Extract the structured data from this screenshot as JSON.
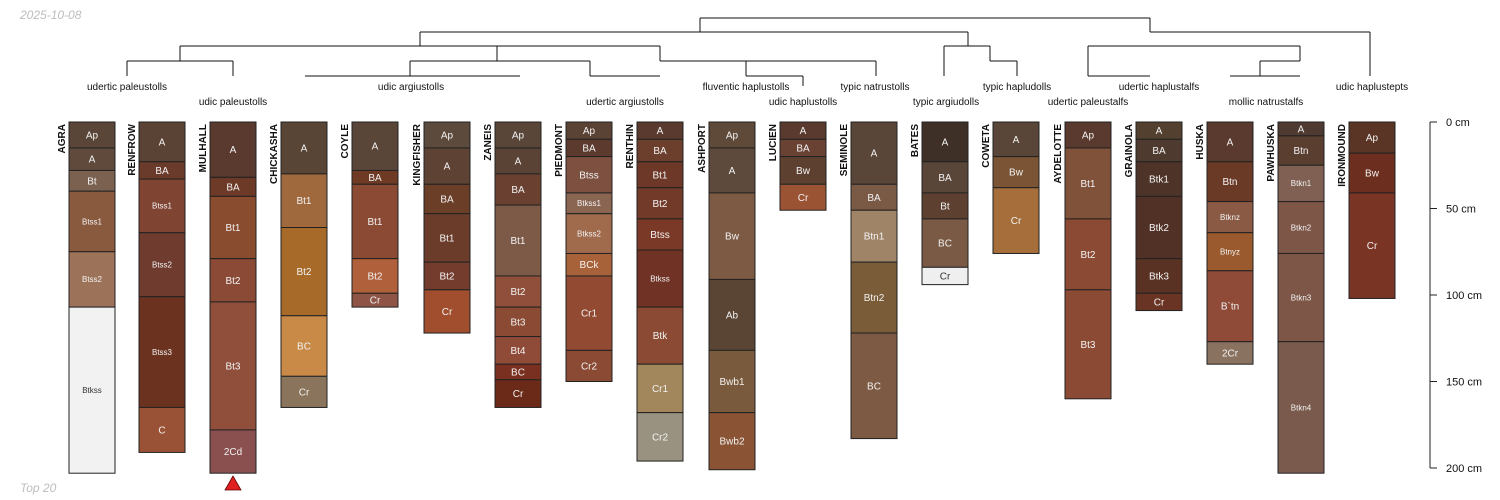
{
  "header": {
    "date": "2025-10-08"
  },
  "footer": {
    "label": "Top 20"
  },
  "chart_data": {
    "type": "soil-profile-sketch",
    "depth_unit": "cm",
    "depth_range": [
      0,
      200
    ],
    "depth_ticks": [
      0,
      50,
      100,
      150,
      200
    ],
    "depth_tick_labels": [
      "0 cm",
      "50 cm",
      "100 cm",
      "150 cm",
      "200 cm"
    ],
    "group_labels": [
      "udertic paleustolls",
      "udic paleustolls",
      "udic argiustolls",
      "udertic argiustolls",
      "fluventic haplustolls",
      "udic haplustolls",
      "typic natrustolls",
      "typic argiudolls",
      "typic hapludolls",
      "udertic paleustalfs",
      "udertic haplustalfs",
      "mollic natrustalfs",
      "udic haplustepts"
    ],
    "profiles": [
      {
        "name": "AGRA",
        "horizons": [
          {
            "name": "Ap",
            "top": 0,
            "bottom": 15,
            "color": "#5a4638"
          },
          {
            "name": "A",
            "top": 15,
            "bottom": 28,
            "color": "#5f4a3c"
          },
          {
            "name": "Bt",
            "top": 28,
            "bottom": 40,
            "color": "#7a6150"
          },
          {
            "name": "Btss1",
            "top": 40,
            "bottom": 75,
            "color": "#8a5a3e"
          },
          {
            "name": "Btss2",
            "top": 75,
            "bottom": 107,
            "color": "#9c7358"
          },
          {
            "name": "Btkss",
            "top": 107,
            "bottom": 203,
            "color": "#f2f2f2"
          }
        ]
      },
      {
        "name": "RENFROW",
        "horizons": [
          {
            "name": "A",
            "top": 0,
            "bottom": 23,
            "color": "#5a4235"
          },
          {
            "name": "BA",
            "top": 23,
            "bottom": 33,
            "color": "#6a3a2a"
          },
          {
            "name": "Btss1",
            "top": 33,
            "bottom": 64,
            "color": "#804432"
          },
          {
            "name": "Btss2",
            "top": 64,
            "bottom": 101,
            "color": "#6e3b2e"
          },
          {
            "name": "Btss3",
            "top": 101,
            "bottom": 165,
            "color": "#6b3220"
          },
          {
            "name": "C",
            "top": 165,
            "bottom": 191,
            "color": "#9a5236"
          }
        ]
      },
      {
        "name": "MULHALL",
        "horizons": [
          {
            "name": "A",
            "top": 0,
            "bottom": 32,
            "color": "#5a3a2e"
          },
          {
            "name": "BA",
            "top": 32,
            "bottom": 43,
            "color": "#6c3a26"
          },
          {
            "name": "Bt1",
            "top": 43,
            "bottom": 79,
            "color": "#8a4c2e"
          },
          {
            "name": "Bt2",
            "top": 79,
            "bottom": 104,
            "color": "#8a4a36"
          },
          {
            "name": "Bt3",
            "top": 104,
            "bottom": 178,
            "color": "#8f4f3b"
          },
          {
            "name": "2Cd",
            "top": 178,
            "bottom": 203,
            "color": "#8a5050"
          }
        ]
      },
      {
        "name": "CHICKASHA",
        "horizons": [
          {
            "name": "A",
            "top": 0,
            "bottom": 30,
            "color": "#594536"
          },
          {
            "name": "Bt1",
            "top": 30,
            "bottom": 61,
            "color": "#a0693d"
          },
          {
            "name": "Bt2",
            "top": 61,
            "bottom": 112,
            "color": "#a86a28"
          },
          {
            "name": "BC",
            "top": 112,
            "bottom": 147,
            "color": "#c98a48"
          },
          {
            "name": "Cr",
            "top": 147,
            "bottom": 165,
            "color": "#8a745c"
          }
        ]
      },
      {
        "name": "COYLE",
        "horizons": [
          {
            "name": "A",
            "top": 0,
            "bottom": 28,
            "color": "#5a4638"
          },
          {
            "name": "BA",
            "top": 28,
            "bottom": 36,
            "color": "#6e3a24"
          },
          {
            "name": "Bt1",
            "top": 36,
            "bottom": 79,
            "color": "#8a4a34"
          },
          {
            "name": "Bt2",
            "top": 79,
            "bottom": 99,
            "color": "#b0603a"
          },
          {
            "name": "Cr",
            "top": 99,
            "bottom": 107,
            "color": "#8e5546"
          }
        ]
      },
      {
        "name": "KINGFISHER",
        "horizons": [
          {
            "name": "Ap",
            "top": 0,
            "bottom": 15,
            "color": "#5c4a3c"
          },
          {
            "name": "A",
            "top": 15,
            "bottom": 36,
            "color": "#5e4335"
          },
          {
            "name": "BA",
            "top": 36,
            "bottom": 53,
            "color": "#6b3e28"
          },
          {
            "name": "Bt1",
            "top": 53,
            "bottom": 81,
            "color": "#6b3c2a"
          },
          {
            "name": "Bt2",
            "top": 81,
            "bottom": 97,
            "color": "#733c2c"
          },
          {
            "name": "Cr",
            "top": 97,
            "bottom": 122,
            "color": "#a04e2e"
          }
        ]
      },
      {
        "name": "ZANEIS",
        "horizons": [
          {
            "name": "Ap",
            "top": 0,
            "bottom": 15,
            "color": "#5a4638"
          },
          {
            "name": "A",
            "top": 15,
            "bottom": 30,
            "color": "#5a4235"
          },
          {
            "name": "BA",
            "top": 30,
            "bottom": 48,
            "color": "#6a4030"
          },
          {
            "name": "Bt1",
            "top": 48,
            "bottom": 89,
            "color": "#7d5a48"
          },
          {
            "name": "Bt2",
            "top": 89,
            "bottom": 107,
            "color": "#8f4f3b"
          },
          {
            "name": "Bt3",
            "top": 107,
            "bottom": 124,
            "color": "#8a4a34"
          },
          {
            "name": "Bt4",
            "top": 124,
            "bottom": 140,
            "color": "#8f4a38"
          },
          {
            "name": "BC",
            "top": 140,
            "bottom": 149,
            "color": "#7a3020"
          },
          {
            "name": "Cr",
            "top": 149,
            "bottom": 165,
            "color": "#6b2a18"
          }
        ]
      },
      {
        "name": "PIEDMONT",
        "horizons": [
          {
            "name": "Ap",
            "top": 0,
            "bottom": 10,
            "color": "#5a4235"
          },
          {
            "name": "BA",
            "top": 10,
            "bottom": 20,
            "color": "#5c3a2e"
          },
          {
            "name": "Btss",
            "top": 20,
            "bottom": 41,
            "color": "#7d5040"
          },
          {
            "name": "Btkss1",
            "top": 41,
            "bottom": 53,
            "color": "#8a6552"
          },
          {
            "name": "Btkss2",
            "top": 53,
            "bottom": 76,
            "color": "#a06a4c"
          },
          {
            "name": "BCk",
            "top": 76,
            "bottom": 89,
            "color": "#a8623a"
          },
          {
            "name": "Cr1",
            "top": 89,
            "bottom": 132,
            "color": "#934a33"
          },
          {
            "name": "Cr2",
            "top": 132,
            "bottom": 150,
            "color": "#8a4a34"
          }
        ]
      },
      {
        "name": "RENTHIN",
        "horizons": [
          {
            "name": "A",
            "top": 0,
            "bottom": 10,
            "color": "#5a3a2e"
          },
          {
            "name": "BA",
            "top": 10,
            "bottom": 23,
            "color": "#6c3e2c"
          },
          {
            "name": "Bt1",
            "top": 23,
            "bottom": 38,
            "color": "#6d3828"
          },
          {
            "name": "Bt2",
            "top": 38,
            "bottom": 56,
            "color": "#723a28"
          },
          {
            "name": "Btss",
            "top": 56,
            "bottom": 74,
            "color": "#7a3826"
          },
          {
            "name": "Btkss",
            "top": 74,
            "bottom": 107,
            "color": "#703224"
          },
          {
            "name": "Btk",
            "top": 107,
            "bottom": 140,
            "color": "#8a4a34"
          },
          {
            "name": "Cr1",
            "top": 140,
            "bottom": 168,
            "color": "#a3875c"
          },
          {
            "name": "Cr2",
            "top": 168,
            "bottom": 196,
            "color": "#9a9280"
          }
        ]
      },
      {
        "name": "ASHPORT",
        "horizons": [
          {
            "name": "Ap",
            "top": 0,
            "bottom": 15,
            "color": "#5f4a3a"
          },
          {
            "name": "A",
            "top": 15,
            "bottom": 41,
            "color": "#5d4a3c"
          },
          {
            "name": "Bw",
            "top": 41,
            "bottom": 91,
            "color": "#7d5a44"
          },
          {
            "name": "Ab",
            "top": 91,
            "bottom": 132,
            "color": "#5a4434"
          },
          {
            "name": "Bwb1",
            "top": 132,
            "bottom": 168,
            "color": "#7a5a3c"
          },
          {
            "name": "Bwb2",
            "top": 168,
            "bottom": 201,
            "color": "#8a5434"
          }
        ]
      },
      {
        "name": "LUCIEN",
        "horizons": [
          {
            "name": "A",
            "top": 0,
            "bottom": 10,
            "color": "#5a3a2e"
          },
          {
            "name": "BA",
            "top": 10,
            "bottom": 20,
            "color": "#6a4234"
          },
          {
            "name": "Bw",
            "top": 20,
            "bottom": 36,
            "color": "#5e4030"
          },
          {
            "name": "Cr",
            "top": 36,
            "bottom": 51,
            "color": "#9a5434"
          }
        ]
      },
      {
        "name": "SEMINOLE",
        "horizons": [
          {
            "name": "A",
            "top": 0,
            "bottom": 36,
            "color": "#5a4638"
          },
          {
            "name": "BA",
            "top": 36,
            "bottom": 51,
            "color": "#7a5a44"
          },
          {
            "name": "Btn1",
            "top": 51,
            "bottom": 81,
            "color": "#a08468"
          },
          {
            "name": "Btn2",
            "top": 81,
            "bottom": 122,
            "color": "#7a5c38"
          },
          {
            "name": "BC",
            "top": 122,
            "bottom": 183,
            "color": "#7d5a44"
          }
        ]
      },
      {
        "name": "BATES",
        "horizons": [
          {
            "name": "A",
            "top": 0,
            "bottom": 23,
            "color": "#3e3026"
          },
          {
            "name": "BA",
            "top": 23,
            "bottom": 41,
            "color": "#5a4638"
          },
          {
            "name": "Bt",
            "top": 41,
            "bottom": 56,
            "color": "#5e4030"
          },
          {
            "name": "BC",
            "top": 56,
            "bottom": 84,
            "color": "#7a5a44"
          },
          {
            "name": "Cr",
            "top": 84,
            "bottom": 94,
            "color": "#efefef"
          }
        ]
      },
      {
        "name": "COWETA",
        "horizons": [
          {
            "name": "A",
            "top": 0,
            "bottom": 20,
            "color": "#5a4638"
          },
          {
            "name": "Bw",
            "top": 20,
            "bottom": 38,
            "color": "#7a5434"
          },
          {
            "name": "Cr",
            "top": 38,
            "bottom": 76,
            "color": "#a66e3a"
          }
        ]
      },
      {
        "name": "AYDELOTTE",
        "horizons": [
          {
            "name": "Ap",
            "top": 0,
            "bottom": 15,
            "color": "#5a3a2e"
          },
          {
            "name": "Bt1",
            "top": 15,
            "bottom": 56,
            "color": "#80523a"
          },
          {
            "name": "Bt2",
            "top": 56,
            "bottom": 97,
            "color": "#8a4a34"
          },
          {
            "name": "Bt3",
            "top": 97,
            "bottom": 160,
            "color": "#8a4a34"
          }
        ]
      },
      {
        "name": "GRAINOLA",
        "horizons": [
          {
            "name": "A",
            "top": 0,
            "bottom": 10,
            "color": "#54402f"
          },
          {
            "name": "BA",
            "top": 10,
            "bottom": 23,
            "color": "#4e3a2e"
          },
          {
            "name": "Btk1",
            "top": 23,
            "bottom": 43,
            "color": "#4e3428"
          },
          {
            "name": "Btk2",
            "top": 43,
            "bottom": 79,
            "color": "#513026"
          },
          {
            "name": "Btk3",
            "top": 79,
            "bottom": 99,
            "color": "#5a3224"
          },
          {
            "name": "Cr",
            "top": 99,
            "bottom": 109,
            "color": "#6a3424"
          }
        ]
      },
      {
        "name": "HUSKA",
        "horizons": [
          {
            "name": "A",
            "top": 0,
            "bottom": 23,
            "color": "#5a3a2e"
          },
          {
            "name": "Btn",
            "top": 23,
            "bottom": 46,
            "color": "#6a3a26"
          },
          {
            "name": "Btknz",
            "top": 46,
            "bottom": 64,
            "color": "#8a5a44"
          },
          {
            "name": "Btnyz",
            "top": 64,
            "bottom": 86,
            "color": "#9a5a2e"
          },
          {
            "name": "B`tn",
            "top": 86,
            "bottom": 127,
            "color": "#8f4a38"
          },
          {
            "name": "2Cr",
            "top": 127,
            "bottom": 140,
            "color": "#8a7260"
          }
        ]
      },
      {
        "name": "PAWHUSKA",
        "horizons": [
          {
            "name": "A",
            "top": 0,
            "bottom": 8,
            "color": "#4e3a30"
          },
          {
            "name": "Btn",
            "top": 8,
            "bottom": 25,
            "color": "#5a3e30"
          },
          {
            "name": "Btkn1",
            "top": 25,
            "bottom": 46,
            "color": "#806052"
          },
          {
            "name": "Btkn2",
            "top": 46,
            "bottom": 76,
            "color": "#7d5648"
          },
          {
            "name": "Btkn3",
            "top": 76,
            "bottom": 127,
            "color": "#7d5648"
          },
          {
            "name": "Btkn4",
            "top": 127,
            "bottom": 203,
            "color": "#7a5a4c"
          }
        ]
      },
      {
        "name": "IRONMOUND",
        "horizons": [
          {
            "name": "Ap",
            "top": 0,
            "bottom": 18,
            "color": "#5a3424"
          },
          {
            "name": "Bw",
            "top": 18,
            "bottom": 41,
            "color": "#6c2e1e"
          },
          {
            "name": "Cr",
            "top": 41,
            "bottom": 102,
            "color": "#7a3424"
          }
        ]
      }
    ]
  }
}
